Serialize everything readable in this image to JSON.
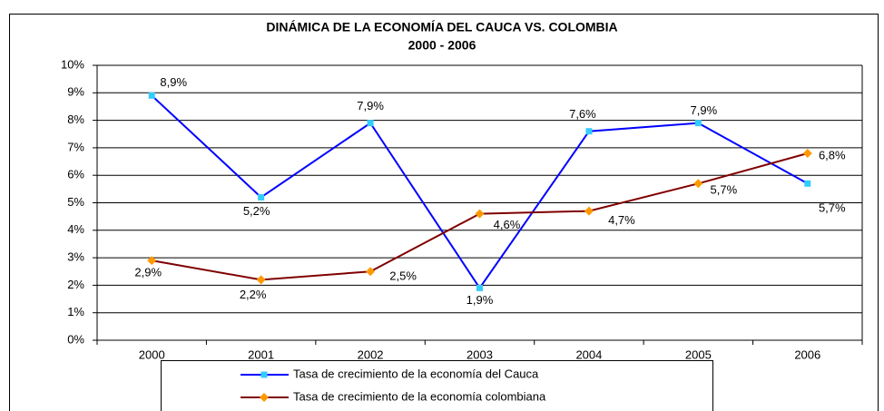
{
  "chart_data": {
    "type": "line",
    "title": "DINÁMICA DE LA ECONOMÍA DEL CAUCA VS. COLOMBIA",
    "subtitle": "2000 - 2006",
    "categories": [
      "2000",
      "2001",
      "2002",
      "2003",
      "2004",
      "2005",
      "2006"
    ],
    "series": [
      {
        "name": "Tasa de crecimiento de la economía del Cauca",
        "color": "#0000ff",
        "marker_color": "#33ccff",
        "values": [
          8.9,
          5.2,
          7.9,
          1.9,
          7.6,
          7.9,
          5.7
        ],
        "value_labels": [
          "8,9%",
          "5,2%",
          "7,9%",
          "1,9%",
          "7,6%",
          "7,9%",
          "5,7%"
        ]
      },
      {
        "name": "Tasa de crecimiento de la economía colombiana",
        "color": "#800000",
        "marker_color": "#ff9900",
        "values": [
          2.9,
          2.2,
          2.5,
          4.6,
          4.7,
          5.7,
          6.8
        ],
        "value_labels": [
          "2,9%",
          "2,2%",
          "2,5%",
          "4,6%",
          "4,7%",
          "5,7%",
          "6,8%"
        ]
      }
    ],
    "ylim": [
      0,
      10
    ],
    "yticks": [
      {
        "value": 0,
        "label": "0%"
      },
      {
        "value": 1,
        "label": "1%"
      },
      {
        "value": 2,
        "label": "2%"
      },
      {
        "value": 3,
        "label": "3%"
      },
      {
        "value": 4,
        "label": "4%"
      },
      {
        "value": 5,
        "label": "5%"
      },
      {
        "value": 6,
        "label": "6%"
      },
      {
        "value": 7,
        "label": "7%"
      },
      {
        "value": 8,
        "label": "8%"
      },
      {
        "value": 9,
        "label": "9%"
      },
      {
        "value": 10,
        "label": "10%"
      }
    ],
    "grid": true
  }
}
